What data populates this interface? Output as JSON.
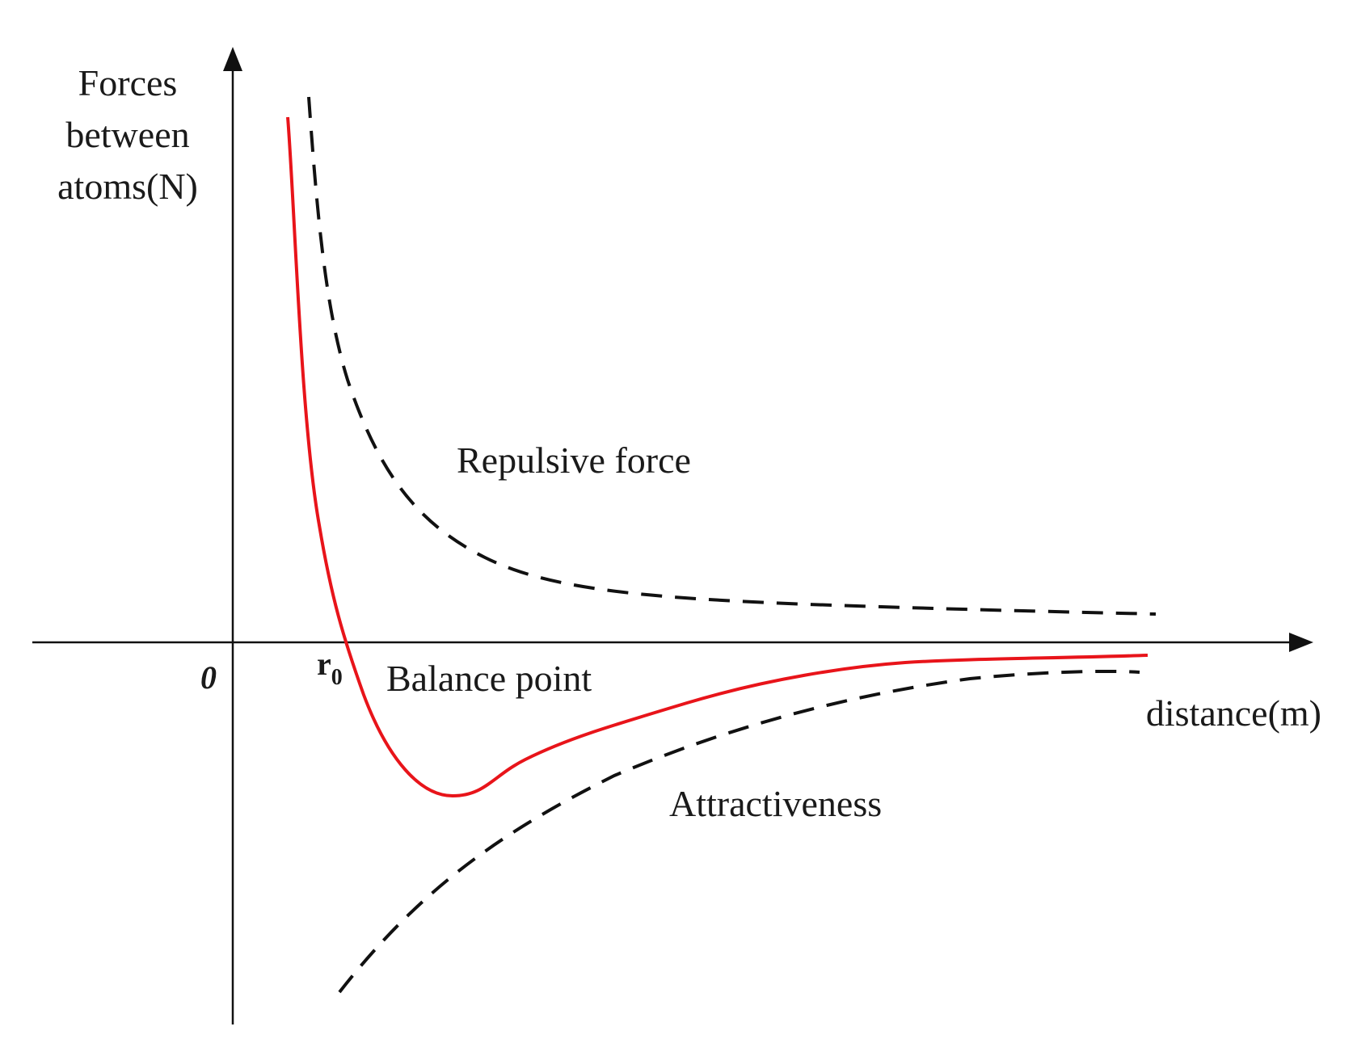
{
  "figure": {
    "y_axis_label_lines": [
      "Forces",
      "between",
      "atoms(N)"
    ],
    "x_axis_label": "distance(m)",
    "origin_label": "0",
    "r0_label": "r",
    "r0_subscript": "0",
    "annotations": {
      "repulsive": "Repulsive force",
      "balance": "Balance point",
      "attractive": "Attractiveness"
    },
    "colors": {
      "net_force": "#e8141a",
      "component_forces": "#111111",
      "axes": "#111111"
    }
  }
}
